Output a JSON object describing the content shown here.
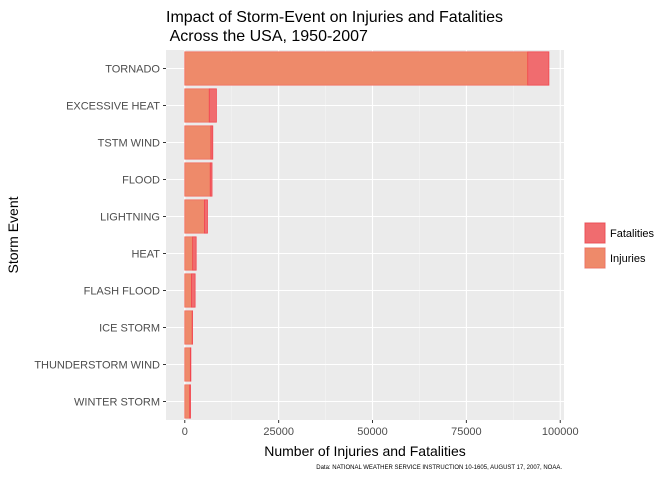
{
  "chart_data": {
    "type": "bar",
    "orientation": "horizontal",
    "stacked": true,
    "title_line1": "Impact of Storm-Event on Injuries and Fatalities",
    "title_line2": " Across the USA, 1950-2007",
    "xlabel": "Number of Injuries and Fatalities",
    "ylabel": "Storm Event",
    "caption": "Data: NATIONAL WEATHER SERVICE INSTRUCTION 10-1605, AUGUST 17, 2007, NOAA.",
    "categories": [
      "TORNADO",
      "EXCESSIVE HEAT",
      "TSTM WIND",
      "FLOOD",
      "LIGHTNING",
      "HEAT",
      "FLASH FLOOD",
      "ICE STORM",
      "THUNDERSTORM WIND",
      "WINTER STORM"
    ],
    "series": [
      {
        "name": "Injuries",
        "color": "#EE8A6A",
        "values": [
          91346,
          6525,
          6957,
          6789,
          5230,
          2100,
          1777,
          1975,
          1488,
          1321
        ]
      },
      {
        "name": "Fatalities",
        "color": "#F06C6F",
        "values": [
          5633,
          1903,
          504,
          470,
          816,
          937,
          978,
          89,
          133,
          206
        ]
      }
    ],
    "xlim": [
      -5000,
      101000
    ],
    "xticks": [
      0,
      25000,
      50000,
      75000,
      100000
    ],
    "xtick_labels": [
      "0",
      "25000",
      "50000",
      "75000",
      "100000"
    ],
    "grid": true,
    "legend_position": "right",
    "legend_entries": [
      "Fatalities",
      "Injuries"
    ]
  }
}
